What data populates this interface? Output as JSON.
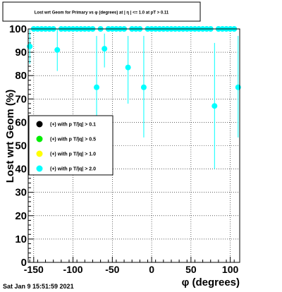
{
  "chart_data": {
    "type": "scatter",
    "title": "Lost wrt Geom for Primary vs φ (degrees) at | η | <= 1.0 at pT > 0.11",
    "xlabel": "φ (degrees)",
    "ylabel": "Lost wrt Geom (%)",
    "xlim": [
      -157,
      112
    ],
    "ylim": [
      0,
      100
    ],
    "xticks": [
      "-150",
      "-100",
      "-50",
      "0",
      "50",
      "100"
    ],
    "xtick_values": [
      -150,
      -100,
      -50,
      0,
      50,
      100
    ],
    "yticks": [
      "0",
      "10",
      "20",
      "30",
      "40",
      "50",
      "60",
      "70",
      "80",
      "90",
      "100"
    ],
    "ytick_values": [
      0,
      10,
      20,
      30,
      40,
      50,
      60,
      70,
      80,
      90,
      100
    ],
    "grid": true,
    "legend_position": "left-middle",
    "legend": [
      {
        "label": "(+) with p T/|q| > 0.1",
        "color": "#000000"
      },
      {
        "label": "(+) with p T/|q| > 0.5",
        "color": "#00ee00"
      },
      {
        "label": "(+) with p T/|q| > 1.0",
        "color": "#ffff00"
      },
      {
        "label": "(+) with p T/|q| > 2.0",
        "color": "#00ffff"
      }
    ],
    "series": [
      {
        "color": "#00ffff",
        "points": [
          {
            "x": -155,
            "y": 92.5,
            "lo": 85,
            "hi": 100
          },
          {
            "x": -150,
            "y": 100,
            "lo": 100,
            "hi": 100
          },
          {
            "x": -145,
            "y": 100,
            "lo": 100,
            "hi": 100
          },
          {
            "x": -140,
            "y": 100,
            "lo": 100,
            "hi": 100
          },
          {
            "x": -135,
            "y": 100,
            "lo": 100,
            "hi": 100
          },
          {
            "x": -130,
            "y": 100,
            "lo": 100,
            "hi": 100
          },
          {
            "x": -125,
            "y": 100,
            "lo": 100,
            "hi": 100
          },
          {
            "x": -120,
            "y": 91,
            "lo": 82,
            "hi": 100
          },
          {
            "x": -115,
            "y": 100,
            "lo": 100,
            "hi": 100
          },
          {
            "x": -110,
            "y": 100,
            "lo": 100,
            "hi": 100
          },
          {
            "x": -105,
            "y": 100,
            "lo": 100,
            "hi": 100
          },
          {
            "x": -100,
            "y": 100,
            "lo": 100,
            "hi": 100
          },
          {
            "x": -95,
            "y": 100,
            "lo": 100,
            "hi": 100
          },
          {
            "x": -90,
            "y": 100,
            "lo": 100,
            "hi": 100
          },
          {
            "x": -85,
            "y": 100,
            "lo": 100,
            "hi": 100
          },
          {
            "x": -80,
            "y": 100,
            "lo": 100,
            "hi": 100
          },
          {
            "x": -75,
            "y": 100,
            "lo": 100,
            "hi": 100
          },
          {
            "x": -70,
            "y": 75,
            "lo": 62,
            "hi": 97
          },
          {
            "x": -65,
            "y": 100,
            "lo": 100,
            "hi": 100
          },
          {
            "x": -60,
            "y": 91.5,
            "lo": 83.5,
            "hi": 98
          },
          {
            "x": -55,
            "y": 100,
            "lo": 100,
            "hi": 100
          },
          {
            "x": -50,
            "y": 100,
            "lo": 100,
            "hi": 100
          },
          {
            "x": -45,
            "y": 100,
            "lo": 100,
            "hi": 100
          },
          {
            "x": -40,
            "y": 100,
            "lo": 100,
            "hi": 100
          },
          {
            "x": -35,
            "y": 100,
            "lo": 100,
            "hi": 100
          },
          {
            "x": -30,
            "y": 83.5,
            "lo": 68,
            "hi": 97
          },
          {
            "x": -25,
            "y": 100,
            "lo": 100,
            "hi": 100
          },
          {
            "x": -20,
            "y": 100,
            "lo": 100,
            "hi": 100
          },
          {
            "x": -15,
            "y": 100,
            "lo": 100,
            "hi": 100
          },
          {
            "x": -10,
            "y": 75,
            "lo": 53.5,
            "hi": 97
          },
          {
            "x": -5,
            "y": 100,
            "lo": 100,
            "hi": 100
          },
          {
            "x": 0,
            "y": 100,
            "lo": 100,
            "hi": 100
          },
          {
            "x": 5,
            "y": 100,
            "lo": 100,
            "hi": 100
          },
          {
            "x": 10,
            "y": 100,
            "lo": 100,
            "hi": 100
          },
          {
            "x": 15,
            "y": 100,
            "lo": 100,
            "hi": 100
          },
          {
            "x": 20,
            "y": 100,
            "lo": 100,
            "hi": 100
          },
          {
            "x": 25,
            "y": 100,
            "lo": 100,
            "hi": 100
          },
          {
            "x": 30,
            "y": 100,
            "lo": 100,
            "hi": 100
          },
          {
            "x": 35,
            "y": 100,
            "lo": 100,
            "hi": 100
          },
          {
            "x": 40,
            "y": 100,
            "lo": 100,
            "hi": 100
          },
          {
            "x": 45,
            "y": 100,
            "lo": 100,
            "hi": 100
          },
          {
            "x": 50,
            "y": 100,
            "lo": 100,
            "hi": 100
          },
          {
            "x": 55,
            "y": 100,
            "lo": 100,
            "hi": 100
          },
          {
            "x": 60,
            "y": 100,
            "lo": 100,
            "hi": 100
          },
          {
            "x": 65,
            "y": 100,
            "lo": 100,
            "hi": 100
          },
          {
            "x": 70,
            "y": 100,
            "lo": 100,
            "hi": 100
          },
          {
            "x": 75,
            "y": 100,
            "lo": 100,
            "hi": 100
          },
          {
            "x": 80,
            "y": 67,
            "lo": 40,
            "hi": 94
          },
          {
            "x": 85,
            "y": 100,
            "lo": 100,
            "hi": 100
          },
          {
            "x": 90,
            "y": 100,
            "lo": 100,
            "hi": 100
          },
          {
            "x": 95,
            "y": 100,
            "lo": 100,
            "hi": 100
          },
          {
            "x": 100,
            "y": 100,
            "lo": 100,
            "hi": 100
          },
          {
            "x": 105,
            "y": 100,
            "lo": 100,
            "hi": 100
          },
          {
            "x": 110,
            "y": 75,
            "lo": 53.5,
            "hi": 97
          }
        ]
      }
    ]
  },
  "footer": {
    "timestamp": "Sat Jan  9 15:51:59 2021"
  }
}
